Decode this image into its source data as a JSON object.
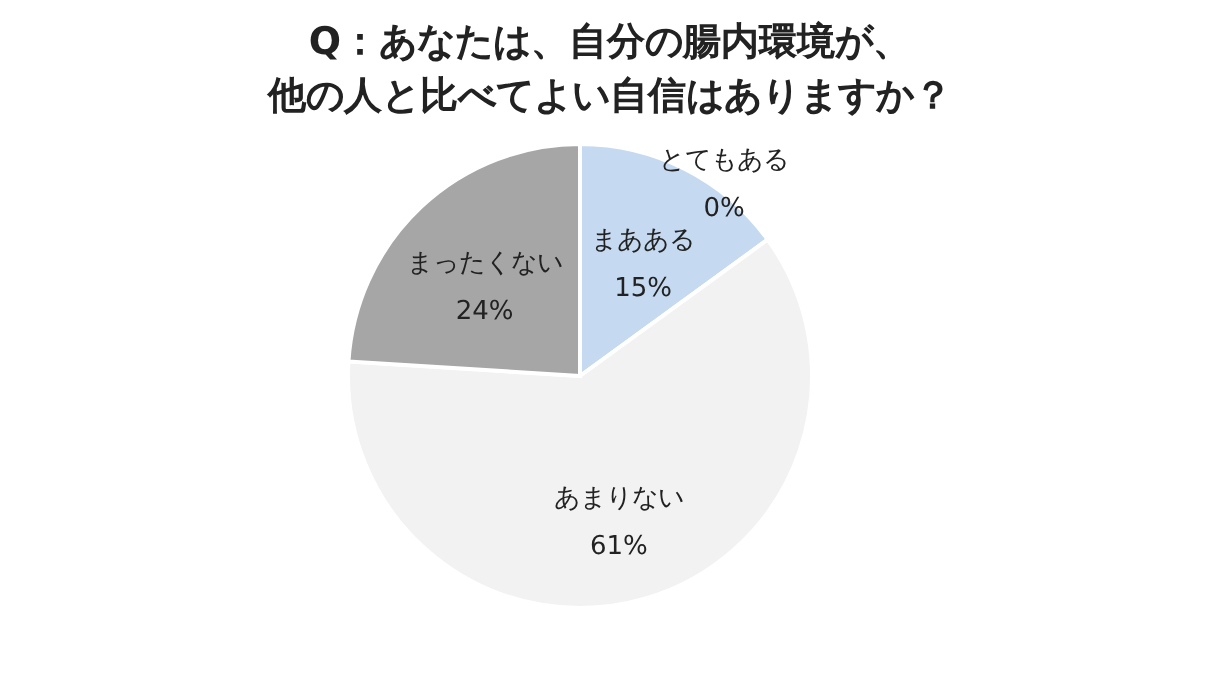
{
  "chart_data": {
    "type": "pie",
    "title": "Q：あなたは、自分の腸内環境が、",
    "subtitle": "他の人と比べてよい自信はありますか？",
    "categories": [
      "とてもある",
      "まあある",
      "あまりない",
      "まったくない"
    ],
    "values": [
      0,
      15,
      61,
      24
    ],
    "colors": [
      "#c5d9f1",
      "#c5d9f1",
      "#f2f2f2",
      "#a6a6a6"
    ],
    "value_labels": [
      "0%",
      "15%",
      "61%",
      "24%"
    ],
    "legend": false
  }
}
